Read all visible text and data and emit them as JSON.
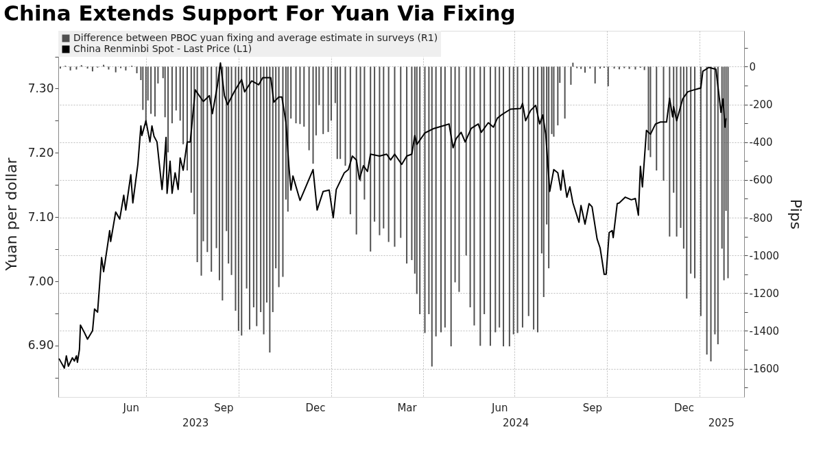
{
  "chart_data": {
    "type": "bar",
    "title": "China Extends Support For Yuan Via Fixing",
    "ylabel": "Yuan per dollar",
    "y2label": "Pips",
    "xlim": [
      "2023-04-05",
      "2025-02-14"
    ],
    "xticks": [
      {
        "value": "2023-06-16",
        "label": "Jun"
      },
      {
        "value": "2023-07-01",
        "label": null
      },
      {
        "value": "2023-09-16",
        "label": "Sep"
      },
      {
        "value": "2023-10-01",
        "label": null
      },
      {
        "value": "2023-12-16",
        "label": "Dec"
      },
      {
        "value": "2024-01-01",
        "label": null
      },
      {
        "value": "2024-03-16",
        "label": "Mar"
      },
      {
        "value": "2024-04-01",
        "label": null
      },
      {
        "value": "2024-06-16",
        "label": "Jun"
      },
      {
        "value": "2024-07-01",
        "label": null
      },
      {
        "value": "2024-09-16",
        "label": "Sep"
      },
      {
        "value": "2024-10-01",
        "label": null
      },
      {
        "value": "2024-12-16",
        "label": "Dec"
      },
      {
        "value": "2025-01-01",
        "label": null
      }
    ],
    "x2lim": [
      "2023-04-05",
      "2025-02-14"
    ],
    "x2ticks": [
      {
        "value": "2023-08-19",
        "label": "2023"
      },
      {
        "value": "2024-07-02",
        "label": "2024"
      },
      {
        "value": "2025-01-22",
        "label": "2025"
      }
    ],
    "ylim": [
      6.82,
      7.39
    ],
    "yticks": [
      {
        "value": 6.85,
        "label": null
      },
      {
        "value": 6.9,
        "label": "6.90"
      },
      {
        "value": 6.95,
        "label": null
      },
      {
        "value": 7.0,
        "label": "7.00"
      },
      {
        "value": 7.05,
        "label": null
      },
      {
        "value": 7.1,
        "label": "7.10"
      },
      {
        "value": 7.15,
        "label": null
      },
      {
        "value": 7.2,
        "label": "7.20"
      },
      {
        "value": 7.25,
        "label": null
      },
      {
        "value": 7.3,
        "label": "7.30"
      },
      {
        "value": 7.35,
        "label": null
      }
    ],
    "y2lim": [
      -1750,
      190
    ],
    "y2ticks": [
      {
        "value": 100,
        "label": null
      },
      {
        "value": 0,
        "label": "0"
      },
      {
        "value": -100,
        "label": null
      },
      {
        "value": -200,
        "label": "-200"
      },
      {
        "value": -300,
        "label": null
      },
      {
        "value": -400,
        "label": "-400"
      },
      {
        "value": -500,
        "label": null
      },
      {
        "value": -600,
        "label": "-600"
      },
      {
        "value": -700,
        "label": null
      },
      {
        "value": -800,
        "label": "-800"
      },
      {
        "value": -900,
        "label": null
      },
      {
        "value": -1000,
        "label": "-1000"
      },
      {
        "value": -1100,
        "label": null
      },
      {
        "value": -1200,
        "label": "-1200"
      },
      {
        "value": -1300,
        "label": null
      },
      {
        "value": -1400,
        "label": "-1400"
      },
      {
        "value": -1500,
        "label": null
      },
      {
        "value": -1600,
        "label": "-1600"
      },
      {
        "value": -1700,
        "label": null
      }
    ],
    "grid": true,
    "legend": "top left",
    "series": [
      {
        "name": "Difference between PBOC yuan fixing and average estimate in surveys (R1)",
        "axis": "y2",
        "color": "#505050",
        "x": [
          "2023-04-07",
          "2023-04-12",
          "2023-04-17",
          "2023-04-23",
          "2023-04-28",
          "2023-05-04",
          "2023-05-09",
          "2023-05-14",
          "2023-05-20",
          "2023-05-25",
          "2023-06-01",
          "2023-06-06",
          "2023-06-11",
          "2023-06-17",
          "2023-06-22",
          "2023-06-26",
          "2023-06-28",
          "2023-07-01",
          "2023-07-03",
          "2023-07-06",
          "2023-07-10",
          "2023-07-13",
          "2023-07-18",
          "2023-07-20",
          "2023-07-23",
          "2023-07-27",
          "2023-07-31",
          "2023-08-04",
          "2023-08-07",
          "2023-08-11",
          "2023-08-15",
          "2023-08-18",
          "2023-08-21",
          "2023-08-25",
          "2023-08-27",
          "2023-08-31",
          "2023-09-04",
          "2023-09-09",
          "2023-09-12",
          "2023-09-15",
          "2023-09-19",
          "2023-09-21",
          "2023-09-24",
          "2023-09-28",
          "2023-10-01",
          "2023-10-04",
          "2023-10-09",
          "2023-10-12",
          "2023-10-16",
          "2023-10-19",
          "2023-10-23",
          "2023-10-26",
          "2023-10-29",
          "2023-11-01",
          "2023-11-04",
          "2023-11-07",
          "2023-11-10",
          "2023-11-14",
          "2023-11-17",
          "2023-11-19",
          "2023-11-22",
          "2023-11-27",
          "2023-12-01",
          "2023-12-05",
          "2023-12-10",
          "2023-12-14",
          "2023-12-17",
          "2023-12-20",
          "2023-12-24",
          "2023-12-29",
          "2024-01-01",
          "2024-01-05",
          "2024-01-07",
          "2024-01-10",
          "2024-01-15",
          "2024-01-20",
          "2024-01-26",
          "2024-01-30",
          "2024-02-03",
          "2024-02-09",
          "2024-02-13",
          "2024-02-18",
          "2024-02-22",
          "2024-02-27",
          "2024-03-04",
          "2024-03-10",
          "2024-03-16",
          "2024-03-21",
          "2024-03-24",
          "2024-03-26",
          "2024-03-29",
          "2024-04-03",
          "2024-04-07",
          "2024-04-10",
          "2024-04-14",
          "2024-04-19",
          "2024-04-23",
          "2024-04-29",
          "2024-05-03",
          "2024-05-07",
          "2024-05-14",
          "2024-05-18",
          "2024-05-22",
          "2024-05-28",
          "2024-06-01",
          "2024-06-07",
          "2024-06-12",
          "2024-06-16",
          "2024-06-20",
          "2024-06-26",
          "2024-06-30",
          "2024-07-04",
          "2024-07-09",
          "2024-07-15",
          "2024-07-20",
          "2024-07-24",
          "2024-07-28",
          "2024-07-30",
          "2024-08-02",
          "2024-08-04",
          "2024-08-07",
          "2024-08-09",
          "2024-08-13",
          "2024-08-15",
          "2024-08-20",
          "2024-08-26",
          "2024-08-28",
          "2024-09-01",
          "2024-09-05",
          "2024-09-09",
          "2024-09-14",
          "2024-09-19",
          "2024-09-24",
          "2024-09-28",
          "2024-10-02",
          "2024-10-08",
          "2024-10-13",
          "2024-10-18",
          "2024-10-23",
          "2024-10-29",
          "2024-11-03",
          "2024-11-07",
          "2024-11-11",
          "2024-11-13",
          "2024-11-19",
          "2024-11-26",
          "2024-12-02",
          "2024-12-06",
          "2024-12-09",
          "2024-12-13",
          "2024-12-16",
          "2024-12-19",
          "2024-12-23",
          "2024-12-27",
          "2025-01-02",
          "2025-01-08",
          "2025-01-12",
          "2025-01-16",
          "2025-01-19",
          "2025-01-23",
          "2025-01-25",
          "2025-01-27",
          "2025-01-29"
        ],
        "values": [
          -10,
          5,
          -20,
          -15,
          8,
          -10,
          -25,
          -5,
          10,
          -15,
          -30,
          -8,
          -20,
          5,
          -35,
          -71,
          -229,
          -311,
          -179,
          -250,
          -264,
          -89,
          -61,
          -268,
          -454,
          -300,
          -232,
          -286,
          -411,
          -550,
          -668,
          -782,
          -1036,
          -1107,
          -925,
          -982,
          -1086,
          -961,
          -1132,
          -1239,
          -871,
          -1043,
          -1104,
          -1293,
          -1400,
          -1425,
          -1175,
          -1393,
          -1275,
          -1375,
          -1300,
          -1418,
          -1250,
          -1514,
          -1300,
          -1068,
          -1168,
          -1114,
          -704,
          -768,
          -275,
          -300,
          -304,
          -318,
          -443,
          -514,
          -364,
          -204,
          -357,
          -346,
          -286,
          -193,
          -489,
          -489,
          -525,
          -782,
          -889,
          -607,
          -704,
          -979,
          -821,
          -893,
          -857,
          -929,
          -954,
          -907,
          -1043,
          -1025,
          -1096,
          -1204,
          -1311,
          -1411,
          -1311,
          -1589,
          -1429,
          -1407,
          -1382,
          -1482,
          -1143,
          -1193,
          -1000,
          -1275,
          -1371,
          -1479,
          -1311,
          -1479,
          -1407,
          -1382,
          -1482,
          -1482,
          -1418,
          -1411,
          -1382,
          -1321,
          -1393,
          -1407,
          -989,
          -1221,
          -836,
          -1068,
          -357,
          -371,
          -311,
          -86,
          -275,
          -96,
          21,
          -8,
          -12,
          -32,
          -10,
          -89,
          -10,
          -6,
          -104,
          -10,
          -14,
          -8,
          -12,
          -15,
          -6,
          -18,
          -443,
          -479,
          -550,
          -604,
          -900,
          -668,
          -900,
          -854,
          -964,
          -1229,
          -1096,
          -1121,
          -1321,
          -1525,
          -1561,
          -1418,
          -1471,
          -964,
          -1132,
          -764,
          -1121
        ]
      },
      {
        "name": "China Renminbi Spot - Last Price (L1)",
        "type": "line",
        "color": "#000000",
        "x": [
          "2023-04-06",
          "2023-04-11",
          "2023-04-13",
          "2023-04-15",
          "2023-04-19",
          "2023-04-21",
          "2023-04-23",
          "2023-04-24",
          "2023-04-26",
          "2023-04-27",
          "2023-05-01",
          "2023-05-04",
          "2023-05-09",
          "2023-05-11",
          "2023-05-14",
          "2023-05-18",
          "2023-05-20",
          "2023-05-24",
          "2023-05-26",
          "2023-05-27",
          "2023-06-01",
          "2023-06-05",
          "2023-06-09",
          "2023-06-11",
          "2023-06-16",
          "2023-06-18",
          "2023-06-23",
          "2023-06-26",
          "2023-06-27",
          "2023-07-01",
          "2023-07-05",
          "2023-07-07",
          "2023-07-09",
          "2023-07-12",
          "2023-07-17",
          "2023-07-19",
          "2023-07-21",
          "2023-07-22",
          "2023-07-25",
          "2023-07-27",
          "2023-07-30",
          "2023-08-02",
          "2023-08-04",
          "2023-08-07",
          "2023-08-11",
          "2023-08-14",
          "2023-08-19",
          "2023-08-27",
          "2023-09-02",
          "2023-09-05",
          "2023-09-10",
          "2023-09-13",
          "2023-09-17",
          "2023-09-20",
          "2023-09-27",
          "2023-10-04",
          "2023-10-07",
          "2023-10-14",
          "2023-10-21",
          "2023-10-25",
          "2023-11-02",
          "2023-11-05",
          "2023-11-10",
          "2023-11-13",
          "2023-11-17",
          "2023-11-20",
          "2023-11-22",
          "2023-11-24",
          "2023-12-01",
          "2023-12-07",
          "2023-12-14",
          "2023-12-18",
          "2023-12-24",
          "2023-12-30",
          "2024-01-03",
          "2024-01-06",
          "2024-01-14",
          "2024-01-18",
          "2024-01-22",
          "2024-01-26",
          "2024-01-29",
          "2024-02-02",
          "2024-02-06",
          "2024-02-09",
          "2024-02-18",
          "2024-02-25",
          "2024-02-29",
          "2024-03-04",
          "2024-03-11",
          "2024-03-16",
          "2024-03-21",
          "2024-03-24",
          "2024-03-26",
          "2024-04-03",
          "2024-04-12",
          "2024-04-23",
          "2024-04-27",
          "2024-05-01",
          "2024-05-04",
          "2024-05-09",
          "2024-05-13",
          "2024-05-19",
          "2024-05-26",
          "2024-05-29",
          "2024-06-05",
          "2024-06-10",
          "2024-06-14",
          "2024-06-18",
          "2024-06-27",
          "2024-07-07",
          "2024-07-09",
          "2024-07-12",
          "2024-07-17",
          "2024-07-22",
          "2024-07-26",
          "2024-07-29",
          "2024-08-01",
          "2024-08-05",
          "2024-08-09",
          "2024-08-13",
          "2024-08-16",
          "2024-08-18",
          "2024-08-22",
          "2024-08-25",
          "2024-08-28",
          "2024-09-03",
          "2024-09-05",
          "2024-09-09",
          "2024-09-13",
          "2024-09-16",
          "2024-09-21",
          "2024-09-24",
          "2024-09-26",
          "2024-09-28",
          "2024-09-30",
          "2024-10-03",
          "2024-10-06",
          "2024-10-07",
          "2024-10-11",
          "2024-10-13",
          "2024-10-19",
          "2024-10-25",
          "2024-10-29",
          "2024-11-01",
          "2024-11-03",
          "2024-11-05",
          "2024-11-09",
          "2024-11-13",
          "2024-11-18",
          "2024-11-23",
          "2024-11-29",
          "2024-12-02",
          "2024-12-05",
          "2024-12-06",
          "2024-12-09",
          "2024-12-15",
          "2024-12-20",
          "2024-12-26",
          "2025-01-02",
          "2025-01-04",
          "2025-01-10",
          "2025-01-17",
          "2025-01-21",
          "2025-01-22",
          "2025-01-24",
          "2025-01-26",
          "2025-01-27"
        ],
        "values": [
          6.879,
          6.865,
          6.884,
          6.868,
          6.881,
          6.876,
          6.884,
          6.874,
          6.894,
          6.932,
          6.92,
          6.91,
          6.923,
          6.957,
          6.952,
          7.037,
          7.015,
          7.057,
          7.079,
          7.062,
          7.108,
          7.097,
          7.134,
          7.111,
          7.166,
          7.122,
          7.182,
          7.242,
          7.227,
          7.25,
          7.217,
          7.242,
          7.226,
          7.217,
          7.143,
          7.179,
          7.224,
          7.137,
          7.187,
          7.137,
          7.169,
          7.143,
          7.192,
          7.173,
          7.217,
          7.217,
          7.298,
          7.28,
          7.289,
          7.261,
          7.305,
          7.34,
          7.289,
          7.275,
          7.296,
          7.314,
          7.295,
          7.312,
          7.306,
          7.317,
          7.317,
          7.279,
          7.287,
          7.287,
          7.248,
          7.179,
          7.142,
          7.164,
          7.126,
          7.148,
          7.174,
          7.111,
          7.14,
          7.142,
          7.099,
          7.143,
          7.169,
          7.174,
          7.195,
          7.189,
          7.159,
          7.18,
          7.171,
          7.198,
          7.195,
          7.198,
          7.189,
          7.198,
          7.182,
          7.195,
          7.198,
          7.227,
          7.213,
          7.231,
          7.238,
          7.243,
          7.245,
          7.208,
          7.222,
          7.232,
          7.217,
          7.238,
          7.245,
          7.232,
          7.247,
          7.24,
          7.254,
          7.259,
          7.268,
          7.269,
          7.277,
          7.25,
          7.266,
          7.274,
          7.245,
          7.259,
          7.229,
          7.14,
          7.174,
          7.169,
          7.142,
          7.173,
          7.131,
          7.147,
          7.122,
          7.092,
          7.118,
          7.089,
          7.121,
          7.116,
          7.066,
          7.052,
          7.032,
          7.011,
          7.011,
          7.076,
          7.079,
          7.068,
          7.121,
          7.122,
          7.131,
          7.127,
          7.129,
          7.103,
          7.179,
          7.147,
          7.235,
          7.229,
          7.245,
          7.248,
          7.248,
          7.285,
          7.256,
          7.272,
          7.25,
          7.284,
          7.295,
          7.298,
          7.301,
          7.327,
          7.333,
          7.33,
          7.277,
          7.263,
          7.284,
          7.24,
          7.253
        ]
      }
    ]
  }
}
